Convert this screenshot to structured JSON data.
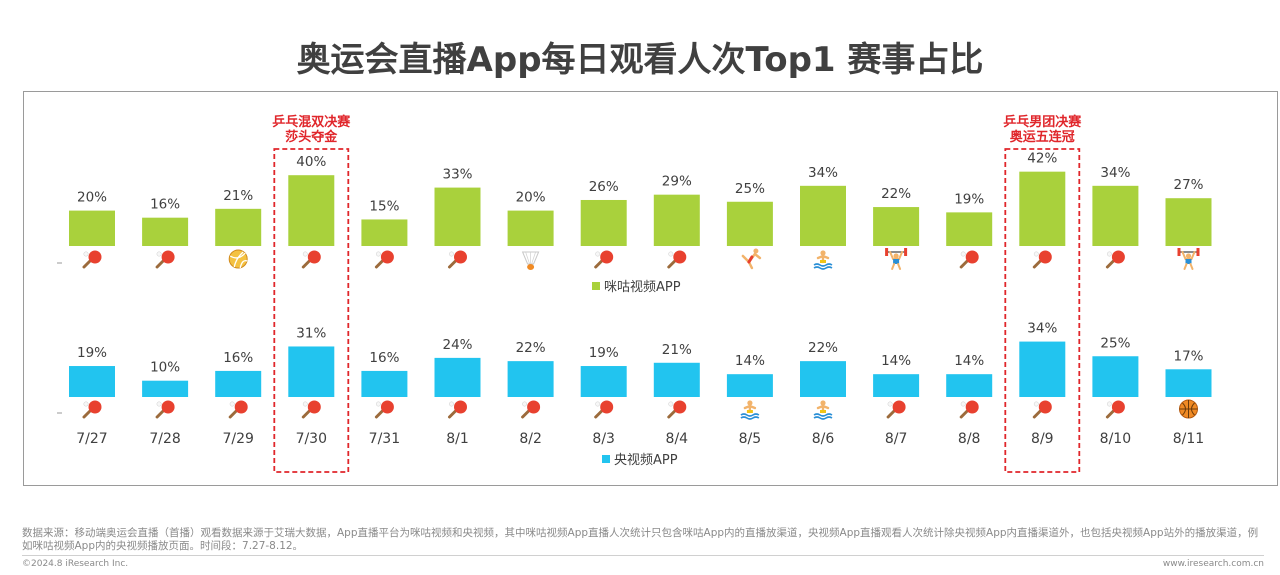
{
  "title": "奥运会直播App每日观看人次Top1 赛事占比",
  "colors": {
    "migu": "#a9d13c",
    "cctv": "#22c4ef",
    "highlight": "#e0262b"
  },
  "chart_data": {
    "type": "bar",
    "title": "奥运会直播App每日观看人次Top1 赛事占比",
    "categories": [
      "7/27",
      "7/28",
      "7/29",
      "7/30",
      "7/31",
      "8/1",
      "8/2",
      "8/3",
      "8/4",
      "8/5",
      "8/6",
      "8/7",
      "8/8",
      "8/9",
      "8/10",
      "8/11"
    ],
    "series": [
      {
        "name": "咪咕视频APP",
        "color": "#a9d13c",
        "values": [
          20,
          16,
          21,
          40,
          15,
          33,
          20,
          26,
          29,
          25,
          34,
          22,
          19,
          42,
          34,
          27
        ],
        "labels": [
          "20%",
          "16%",
          "21%",
          "40%",
          "15%",
          "33%",
          "20%",
          "26%",
          "29%",
          "25%",
          "34%",
          "22%",
          "19%",
          "42%",
          "34%",
          "27%"
        ],
        "icons": [
          "table-tennis",
          "table-tennis",
          "volleyball",
          "table-tennis",
          "table-tennis",
          "table-tennis",
          "badminton",
          "table-tennis",
          "table-tennis",
          "gymnastics",
          "diving",
          "weightlifting",
          "table-tennis",
          "table-tennis",
          "table-tennis",
          "weightlifting"
        ]
      },
      {
        "name": "央视频APP",
        "color": "#22c4ef",
        "values": [
          19,
          10,
          16,
          31,
          16,
          24,
          22,
          19,
          21,
          14,
          22,
          14,
          14,
          34,
          25,
          17
        ],
        "labels": [
          "19%",
          "10%",
          "16%",
          "31%",
          "16%",
          "24%",
          "22%",
          "19%",
          "21%",
          "14%",
          "22%",
          "14%",
          "14%",
          "34%",
          "25%",
          "17%"
        ],
        "icons": [
          "table-tennis",
          "table-tennis",
          "table-tennis",
          "table-tennis",
          "table-tennis",
          "table-tennis",
          "table-tennis",
          "table-tennis",
          "table-tennis",
          "diving",
          "diving",
          "table-tennis",
          "table-tennis",
          "table-tennis",
          "table-tennis",
          "basketball"
        ]
      }
    ],
    "highlights": [
      {
        "category": "7/30",
        "lines": [
          "乒乓混双决赛",
          "莎头夺金"
        ]
      },
      {
        "category": "8/9",
        "lines": [
          "乒乓男团决赛",
          "奥运五连冠"
        ]
      }
    ],
    "ylim": [
      0,
      45
    ],
    "grid": false,
    "legend_placement": "below each series"
  },
  "footer": {
    "note": "数据来源：移动端奥运会直播（首播）观看数据来源于艾瑞大数据，App直播平台为咪咕视频和央视频，其中咪咕视频App直播人次统计只包含咪咕App内的直播放渠道，央视频App直播观看人次统计除央视频App内直播渠道外，也包括央视频App站外的播放渠道，例如咪咕视频App内的央视频播放页面。时间段：7.27-8.12。",
    "copyright": "©2024.8 iResearch Inc.",
    "website": "www.iresearch.com.cn"
  }
}
